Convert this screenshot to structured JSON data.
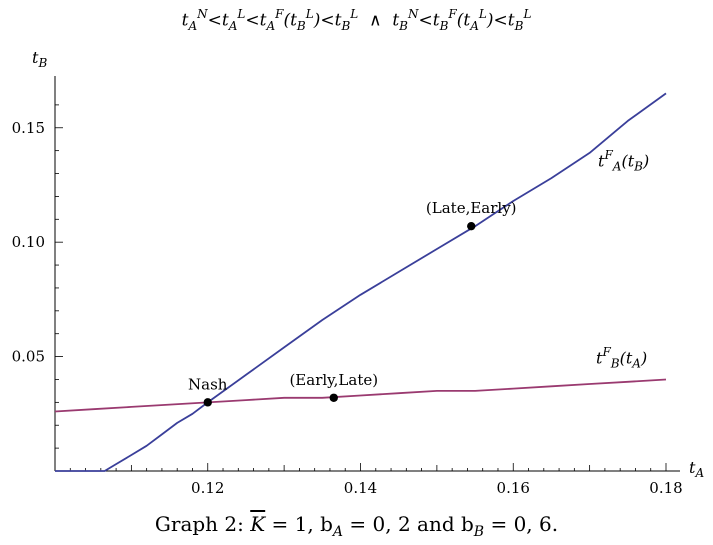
{
  "chart_data": {
    "type": "line",
    "title": {
      "prefix": "t",
      "n1_sub": "A",
      "n1_sup": "N",
      "lt1": "<",
      "l1_sub": "A",
      "l1_sup": "L",
      "lt2": "<",
      "f1_sub": "A",
      "f1_sup": "F",
      "f1_arg_sub": "B",
      "f1_arg_sup": "L",
      "lt3": "<",
      "rhs1_sub": "B",
      "rhs1_sup": "L",
      "and": "∧",
      "n2_sub": "B",
      "n2_sup": "N",
      "lt4": "<",
      "f2_sub": "B",
      "f2_sup": "F",
      "f2_arg_sub": "A",
      "f2_arg_sup": "L",
      "lt5": "<",
      "rhs2_sub": "B",
      "rhs2_sup": "L"
    },
    "xlabel": {
      "base": "t",
      "sub": "A"
    },
    "ylabel": {
      "base": "t",
      "sub": "B"
    },
    "xlim": [
      0.1,
      0.18
    ],
    "ylim": [
      0.0,
      0.17
    ],
    "x_ticks": [
      {
        "value": 0.12,
        "label": "0.12"
      },
      {
        "value": 0.14,
        "label": "0.14"
      },
      {
        "value": 0.16,
        "label": "0.16"
      },
      {
        "value": 0.18,
        "label": "0.18"
      }
    ],
    "y_ticks": [
      {
        "value": 0.05,
        "label": "0.05"
      },
      {
        "value": 0.1,
        "label": "0.10"
      },
      {
        "value": 0.15,
        "label": "0.15"
      }
    ],
    "series": [
      {
        "color": "#3a3f9a",
        "label": {
          "base": "t",
          "sup": "F",
          "sub": "A",
          "arg_base": "t",
          "arg_sub": "B"
        },
        "points": [
          [
            0.1,
            0.0
          ],
          [
            0.1065,
            0.0
          ],
          [
            0.108,
            0.003
          ],
          [
            0.11,
            0.007
          ],
          [
            0.112,
            0.011
          ],
          [
            0.114,
            0.016
          ],
          [
            0.116,
            0.021
          ],
          [
            0.118,
            0.025
          ],
          [
            0.12,
            0.03
          ],
          [
            0.125,
            0.042
          ],
          [
            0.13,
            0.054
          ],
          [
            0.135,
            0.066
          ],
          [
            0.14,
            0.077
          ],
          [
            0.145,
            0.087
          ],
          [
            0.15,
            0.097
          ],
          [
            0.155,
            0.107
          ],
          [
            0.16,
            0.118
          ],
          [
            0.165,
            0.128
          ],
          [
            0.17,
            0.139
          ],
          [
            0.175,
            0.153
          ],
          [
            0.18,
            0.165
          ]
        ]
      },
      {
        "color": "#9a3a70",
        "label": {
          "base": "t",
          "sup": "F",
          "sub": "B",
          "arg_base": "t",
          "arg_sub": "A"
        },
        "points": [
          [
            0.1,
            0.026
          ],
          [
            0.105,
            0.027
          ],
          [
            0.11,
            0.028
          ],
          [
            0.115,
            0.029
          ],
          [
            0.12,
            0.03
          ],
          [
            0.125,
            0.031
          ],
          [
            0.13,
            0.032
          ],
          [
            0.135,
            0.032
          ],
          [
            0.14,
            0.033
          ],
          [
            0.145,
            0.034
          ],
          [
            0.15,
            0.035
          ],
          [
            0.155,
            0.035
          ],
          [
            0.16,
            0.036
          ],
          [
            0.165,
            0.037
          ],
          [
            0.17,
            0.038
          ],
          [
            0.175,
            0.039
          ],
          [
            0.18,
            0.04
          ]
        ]
      }
    ],
    "annotations": [
      {
        "x": 0.12,
        "y": 0.03,
        "text": "Nash"
      },
      {
        "x": 0.1365,
        "y": 0.032,
        "text": "(Early,Late)"
      },
      {
        "x": 0.1545,
        "y": 0.107,
        "text": "(Late,Early)"
      }
    ],
    "grid": false
  },
  "caption": {
    "prefix": "Graph 2: ",
    "k": "K",
    "rest": " = 1, b",
    "bA_sub": "A",
    "mid": " = 0, 2 and b",
    "bB_sub": "B",
    "end": " = 0, 6."
  }
}
